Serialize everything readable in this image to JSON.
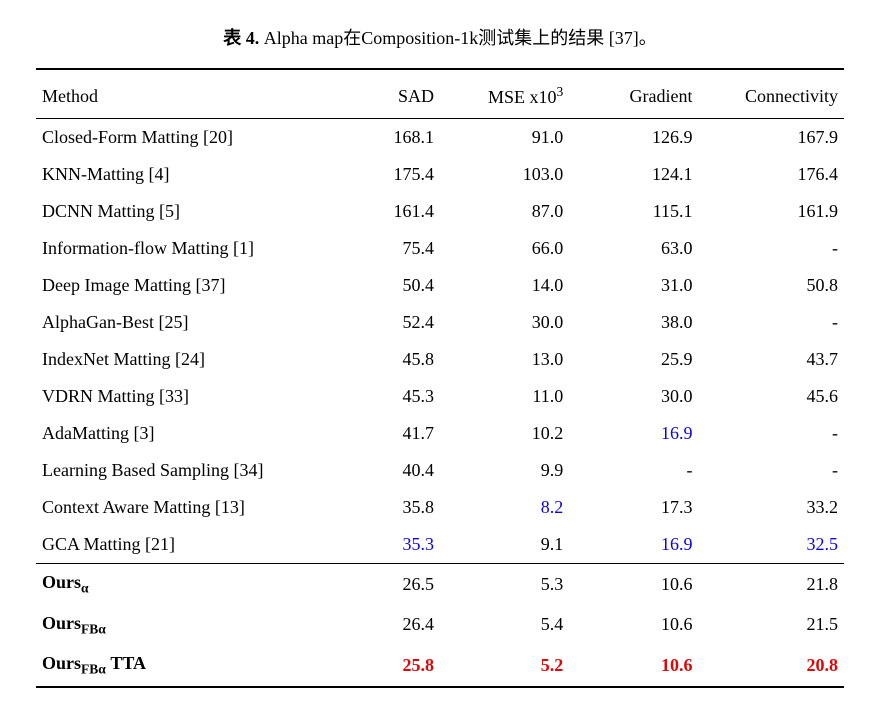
{
  "caption": {
    "label": "表 4.",
    "text": " Alpha map在Composition-1k测试集上的结果 [37]。"
  },
  "colors": {
    "highlight_best": "#dd0808",
    "highlight_second": "#0a05dc"
  },
  "columns": [
    {
      "label": "Method"
    },
    {
      "label": "SAD"
    },
    {
      "label_prefix": "MSE ",
      "label_x10": "x10",
      "label_exp": "3"
    },
    {
      "label": "Gradient"
    },
    {
      "label": "Connectivity"
    }
  ],
  "rows_main": [
    {
      "method": "Closed-Form Matting [20]",
      "sad": "168.1",
      "mse": "91.0",
      "grad": "126.9",
      "conn": "167.9"
    },
    {
      "method": "KNN-Matting [4]",
      "sad": "175.4",
      "mse": "103.0",
      "grad": "124.1",
      "conn": "176.4"
    },
    {
      "method": "DCNN Matting [5]",
      "sad": "161.4",
      "mse": "87.0",
      "grad": "115.1",
      "conn": "161.9"
    },
    {
      "method": "Information-flow Matting [1]",
      "sad": "75.4",
      "mse": "66.0",
      "grad": "63.0",
      "conn": "-"
    },
    {
      "method": "Deep Image Matting [37]",
      "sad": "50.4",
      "mse": "14.0",
      "grad": "31.0",
      "conn": "50.8"
    },
    {
      "method": "AlphaGan-Best [25]",
      "sad": "52.4",
      "mse": "30.0",
      "grad": "38.0",
      "conn": "-"
    },
    {
      "method": "IndexNet Matting [24]",
      "sad": "45.8",
      "mse": "13.0",
      "grad": "25.9",
      "conn": "43.7"
    },
    {
      "method": "VDRN Matting [33]",
      "sad": "45.3",
      "mse": "11.0",
      "grad": "30.0",
      "conn": "45.6"
    },
    {
      "method": "AdaMatting [3]",
      "sad": "41.7",
      "mse": "10.2",
      "grad": "16.9",
      "conn": "-",
      "grad_blue": true
    },
    {
      "method": "Learning Based Sampling [34]",
      "sad": "40.4",
      "mse": "9.9",
      "grad": "-",
      "conn": "-"
    },
    {
      "method": "Context Aware Matting [13]",
      "sad": "35.8",
      "mse": "8.2",
      "grad": "17.3",
      "conn": "33.2",
      "mse_blue": true
    },
    {
      "method": "GCA Matting [21]",
      "sad": "35.3",
      "mse": "9.1",
      "grad": "16.9",
      "conn": "32.5",
      "sad_blue": true,
      "grad_blue": true,
      "conn_blue": true
    }
  ],
  "rows_ours": [
    {
      "name": "Ours",
      "sub": "α",
      "suffix": "",
      "sad": "26.5",
      "mse": "5.3",
      "grad": "10.6",
      "conn": "21.8"
    },
    {
      "name": "Ours",
      "sub": "FBα",
      "suffix": "",
      "sad": "26.4",
      "mse": "5.4",
      "grad": "10.6",
      "conn": "21.5"
    },
    {
      "name": "Ours",
      "sub": "FBα",
      "suffix": " TTA",
      "sad": "25.8",
      "mse": "5.2",
      "grad": "10.6",
      "conn": "20.8",
      "all_red": true
    }
  ]
}
